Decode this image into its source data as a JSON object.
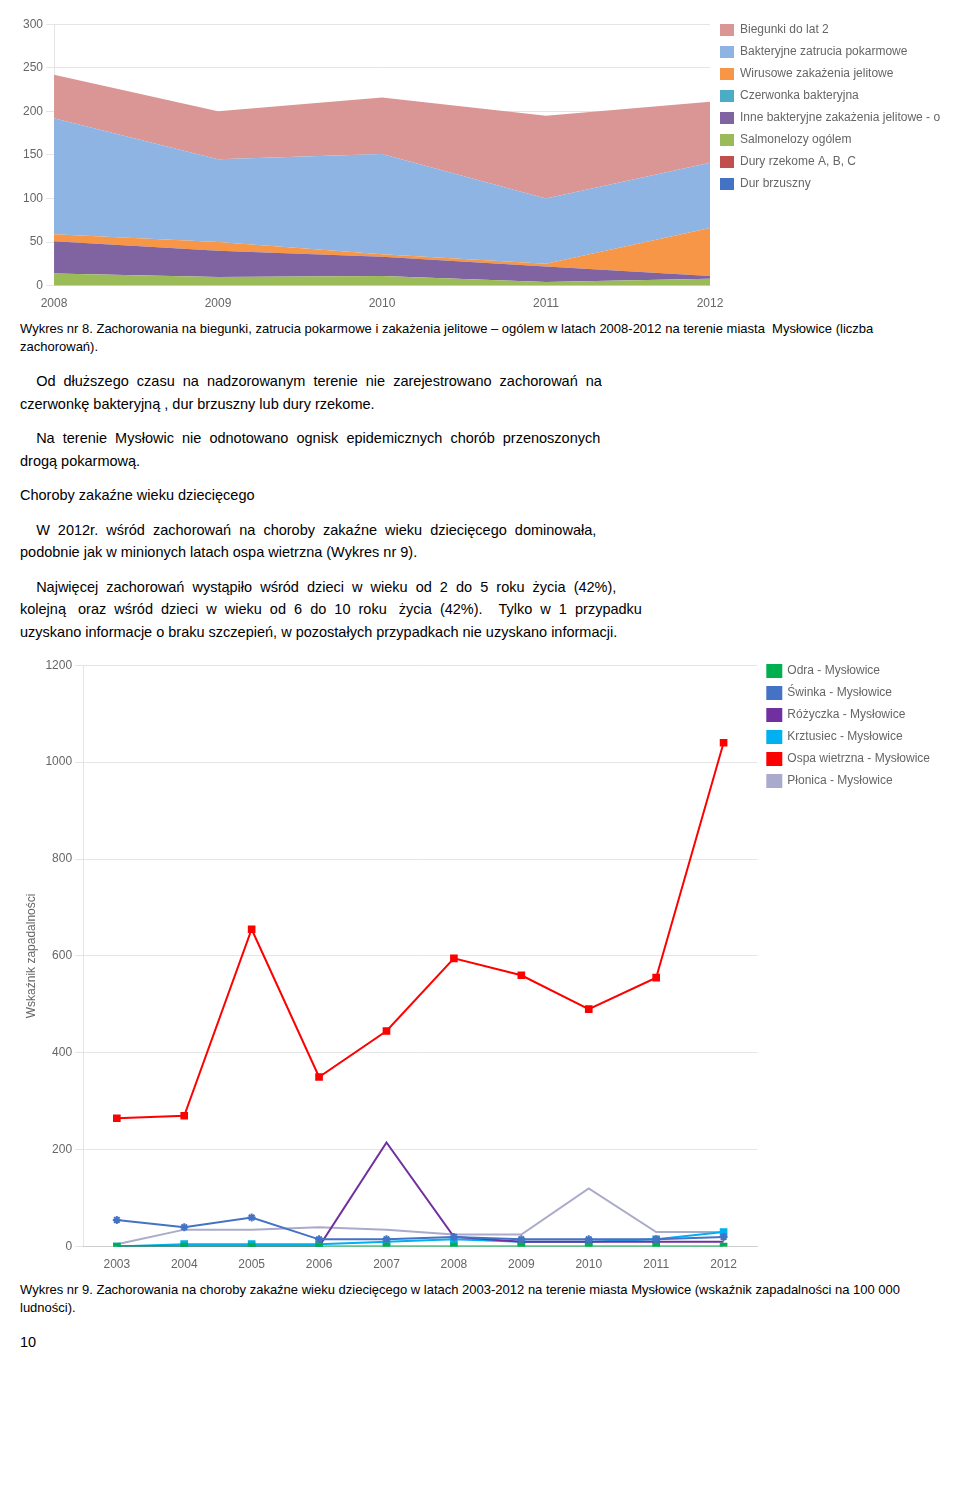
{
  "chart_data": [
    {
      "type": "area",
      "stacked": true,
      "title": "Wykres nr 8. Zachorowania na biegunki, zatrucia pokarmowe i zakażenia jelitowe – ogólem w latach 2008-2012 na terenie miasta  Mysłowice (liczba zachorowań).",
      "x": [
        2008,
        2009,
        2010,
        2011,
        2012
      ],
      "xlim": [
        2008,
        2012
      ],
      "xticks": [
        2008,
        2009,
        2010,
        2011,
        2012
      ],
      "ylim": [
        0,
        300
      ],
      "yticks": [
        0,
        50,
        100,
        150,
        200,
        250,
        300
      ],
      "grid": true,
      "legend": "right",
      "series": [
        {
          "name": "Dur brzuszny",
          "color": "#4472C4",
          "values": [
            0,
            0,
            0,
            0,
            0
          ]
        },
        {
          "name": "Dury rzekome A, B, C",
          "color": "#C0504D",
          "values": [
            0,
            0,
            0,
            0,
            0
          ]
        },
        {
          "name": "Salmonelozy ogólem",
          "color": "#9BBB59",
          "values": [
            14,
            10,
            11,
            4,
            8
          ]
        },
        {
          "name": "Inne bakteryjne zakażenia jelitowe - ogół.",
          "color": "#8064A2",
          "values": [
            37,
            30,
            22,
            18,
            3
          ]
        },
        {
          "name": "Czerwonka bakteryjna",
          "color": "#4BACC6",
          "values": [
            0,
            0,
            0,
            0,
            0
          ]
        },
        {
          "name": "Wirusowe zakażenia jelitowe",
          "color": "#F79646",
          "values": [
            8,
            10,
            3,
            3,
            55
          ]
        },
        {
          "name": "Bakteryjne zatrucia pokarmowe",
          "color": "#8EB4E3",
          "values": [
            133,
            95,
            115,
            75,
            75
          ]
        },
        {
          "name": "Biegunki do lat 2",
          "color": "#D99694",
          "values": [
            50,
            55,
            65,
            95,
            70
          ]
        }
      ],
      "annotations": [
        "    Od  dłuższego  czasu  na  nadzorowanym  terenie  nie  zarejestrowano  zachorowań  na\nczerwonkę bakteryjną , dur brzuszny lub dury rzekome.",
        "    Na  terenie  Mysłowic  nie  odnotowano  ognisk  epidemicznych  chorób  przenoszonych\ndrogą pokarmową.",
        "Choroby zakaźne wieku dziecięcego",
        "    W  2012r.  wśród  zachorowań  na  choroby  zakaźne  wieku  dziecięcego  dominowała,\npodobnie jak w minionych latach ospa wietrzna (Wykres nr 9).",
        "    Najwięcej  zachorowań  wystąpiło  wśród  dzieci  w  wieku  od  2  do  5  roku  życia  (42%),\nkolejną   oraz  wśród  dzieci  w  wieku  od  6  do  10  roku   życia  (42%).    Tylko  w  1  przypadku\nuzyskano informacje o braku szczepień, w pozostałych przypadkach nie uzyskano informacji."
      ]
    },
    {
      "type": "line",
      "title": "Wykres nr 9. Zachorowania na choroby zakaźne wieku dziecięcego w latach 2003-2012 na terenie miasta Mysłowice (wskaźnik zapadalności na 100 000 ludności).",
      "ylabel": "Wskaźnik zapadalności",
      "x": [
        2003,
        2004,
        2005,
        2006,
        2007,
        2008,
        2009,
        2010,
        2011,
        2012
      ],
      "xlim": [
        2002.5,
        2012.5
      ],
      "xticks": [
        2003,
        2004,
        2005,
        2006,
        2007,
        2008,
        2009,
        2010,
        2011,
        2012
      ],
      "ylim": [
        0,
        1200
      ],
      "yticks": [
        0,
        200,
        400,
        600,
        800,
        1000,
        1200
      ],
      "grid": true,
      "legend": "right",
      "series": [
        {
          "name": "Odra - Mysłowice",
          "color": "#00B050",
          "marker": "square",
          "values": [
            0,
            0,
            0,
            0,
            0,
            0,
            0,
            0,
            0,
            0
          ]
        },
        {
          "name": "Świnka - Mysłowice",
          "color": "#4472C4",
          "marker": "star",
          "values": [
            55,
            40,
            60,
            15,
            15,
            20,
            15,
            15,
            15,
            20
          ]
        },
        {
          "name": "Różyczka - Mysłowice",
          "color": "#7030A0",
          "marker": "none",
          "values": [
            0,
            0,
            0,
            0,
            215,
            20,
            10,
            10,
            10,
            10
          ]
        },
        {
          "name": "Krztusiec - Mysłowice",
          "color": "#00B0F0",
          "marker": "square",
          "values": [
            0,
            5,
            5,
            5,
            10,
            15,
            10,
            10,
            15,
            30
          ]
        },
        {
          "name": "Ospa wietrzna - Mysłowice",
          "color": "#FF0000",
          "marker": "square",
          "values": [
            265,
            270,
            655,
            350,
            445,
            595,
            560,
            490,
            555,
            1040
          ]
        },
        {
          "name": "Płonica - Mysłowice",
          "color": "#AAAACC",
          "marker": "none",
          "values": [
            5,
            35,
            35,
            40,
            35,
            25,
            25,
            120,
            30,
            30
          ]
        }
      ],
      "annotations": [
        "10"
      ]
    }
  ]
}
